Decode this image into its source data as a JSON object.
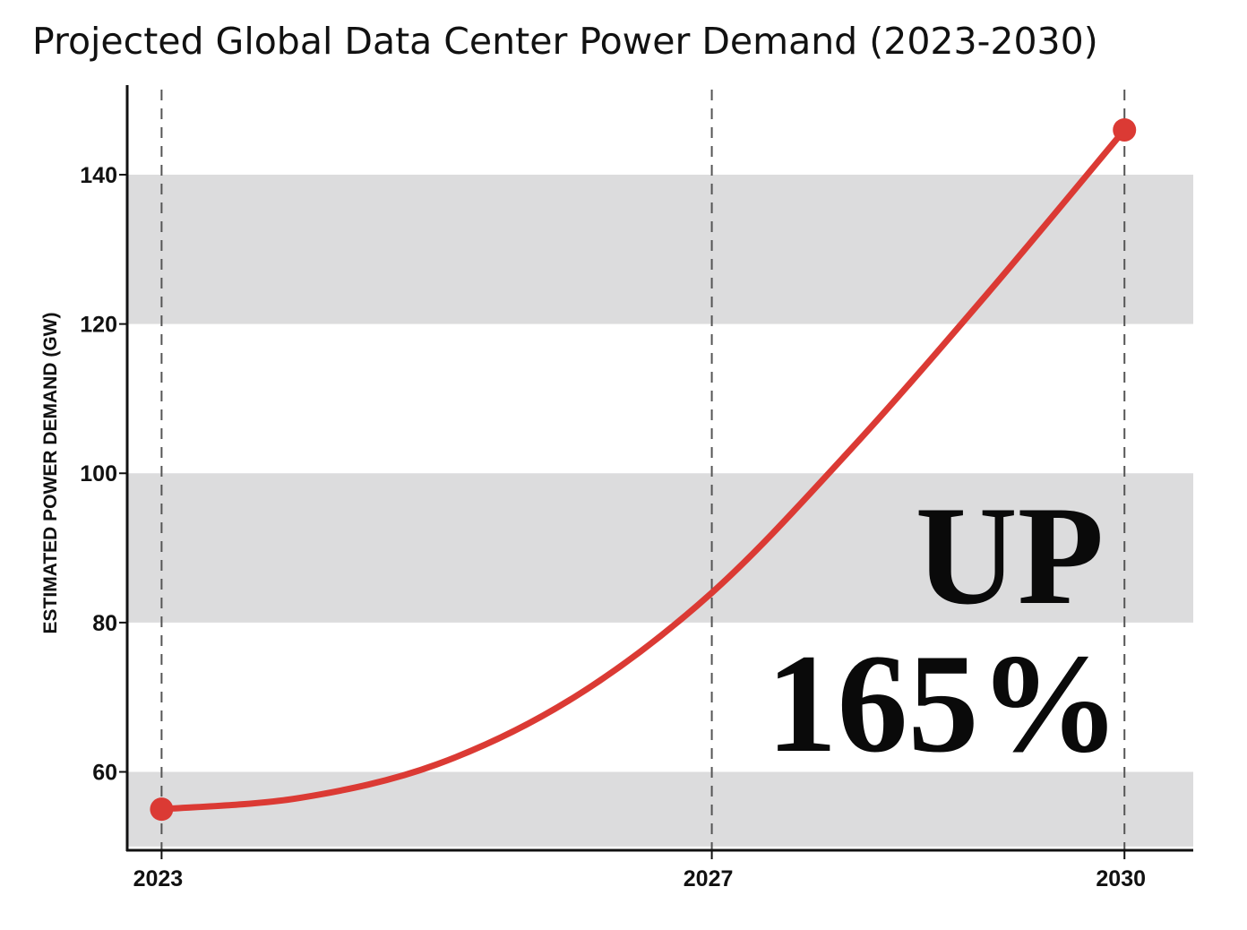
{
  "chart_data": {
    "type": "line",
    "title": "Projected Global Data Center Power Demand (2023-2030)",
    "xlabel": "",
    "ylabel": "ESTIMATED POWER DEMAND (GW)",
    "xlim": [
      2022.75,
      2030.5
    ],
    "ylim": [
      49.5,
      152
    ],
    "x_ticks": [
      {
        "value": 2023,
        "label": "2023"
      },
      {
        "value": 2027,
        "label": "2027"
      },
      {
        "value": 2030,
        "label": "2030"
      }
    ],
    "y_ticks": [
      {
        "value": 60,
        "label": "60"
      },
      {
        "value": 80,
        "label": "80"
      },
      {
        "value": 100,
        "label": "100"
      },
      {
        "value": 120,
        "label": "120"
      },
      {
        "value": 140,
        "label": "140"
      }
    ],
    "bands": [
      [
        50,
        60
      ],
      [
        80,
        100
      ],
      [
        120,
        140
      ]
    ],
    "vertical_gridlines": [
      2023,
      2027,
      2030
    ],
    "series": [
      {
        "name": "Power demand (GW)",
        "x": [
          2023,
          2024,
          2025,
          2026,
          2027,
          2028,
          2029,
          2030
        ],
        "values": [
          55,
          56.5,
          61,
          70,
          84,
          103,
          124,
          146
        ]
      }
    ],
    "endpoints": [
      {
        "x": 2023,
        "value": 55
      },
      {
        "x": 2030,
        "value": 146
      }
    ],
    "annotation": {
      "line1": "UP",
      "line2": "165%"
    },
    "colors": {
      "line": "#db3a34",
      "band": "#dcdcdd",
      "axis": "#111111",
      "grid": "#555555",
      "text": "#111111"
    }
  }
}
